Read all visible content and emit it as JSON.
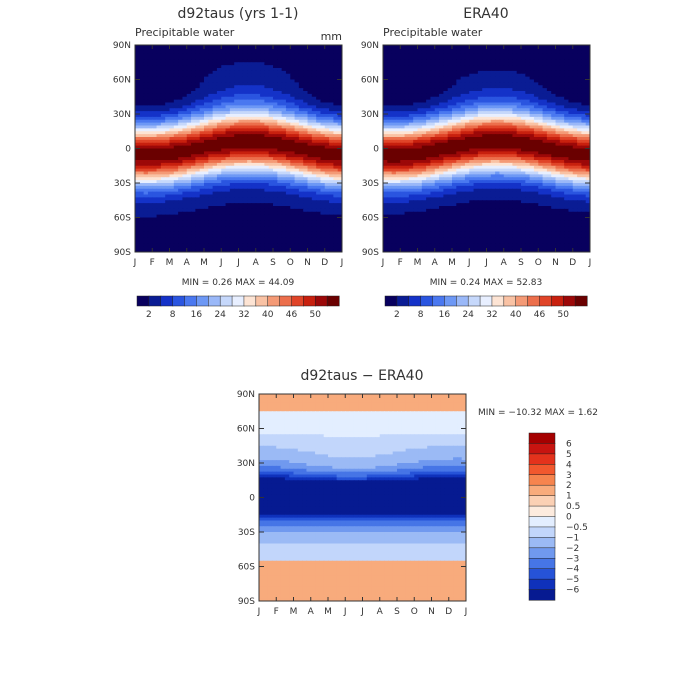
{
  "chart_data": [
    {
      "type": "heatmap",
      "title": "d92taus (yrs 1-1)",
      "subtitle": "Precipitable water",
      "units": "mm",
      "min_label": "MIN =    0.26 MAX =   44.09",
      "x_ticks": [
        "J",
        "F",
        "M",
        "A",
        "M",
        "J",
        "J",
        "A",
        "S",
        "O",
        "N",
        "D",
        "J"
      ],
      "y_ticks": [
        "90N",
        "60N",
        "30N",
        "0",
        "30S",
        "60S",
        "90S"
      ],
      "peak": 44,
      "colorbar": {
        "labels": [
          "2",
          "8",
          "16",
          "24",
          "32",
          "40",
          "46",
          "50"
        ],
        "colors": [
          "#08005e",
          "#0a1c94",
          "#1432c8",
          "#2a55e0",
          "#4a78f0",
          "#6d98f5",
          "#9ab8f8",
          "#c6d8fb",
          "#e8efff",
          "#fde4d4",
          "#f9c2a4",
          "#f49a76",
          "#ec6f4c",
          "#e04428",
          "#c8200e",
          "#9c0808",
          "#6a0000"
        ]
      }
    },
    {
      "type": "heatmap",
      "title": "ERA40",
      "subtitle": "Precipitable water",
      "min_label": "MIN =    0.24 MAX =   52.83",
      "x_ticks": [
        "J",
        "F",
        "M",
        "A",
        "M",
        "J",
        "J",
        "A",
        "S",
        "O",
        "N",
        "D",
        "J"
      ],
      "y_ticks": [
        "90N",
        "60N",
        "30N",
        "0",
        "30S",
        "60S",
        "90S"
      ],
      "peak": 53,
      "colorbar": {
        "labels": [
          "2",
          "8",
          "16",
          "24",
          "32",
          "40",
          "46",
          "50"
        ],
        "colors": [
          "#08005e",
          "#0a1c94",
          "#1432c8",
          "#2a55e0",
          "#4a78f0",
          "#6d98f5",
          "#9ab8f8",
          "#c6d8fb",
          "#e8efff",
          "#fde4d4",
          "#f9c2a4",
          "#f49a76",
          "#ec6f4c",
          "#e04428",
          "#c8200e",
          "#9c0808",
          "#6a0000"
        ]
      }
    },
    {
      "type": "heatmap",
      "title": "d92taus − ERA40",
      "min_label": "MIN = −10.32 MAX =    1.62",
      "x_ticks": [
        "J",
        "F",
        "M",
        "A",
        "M",
        "J",
        "J",
        "A",
        "S",
        "O",
        "N",
        "D",
        "J"
      ],
      "y_ticks": [
        "90N",
        "60N",
        "30N",
        "0",
        "30S",
        "60S",
        "90S"
      ],
      "colorbar": {
        "labels": [
          "6",
          "5",
          "4",
          "3",
          "2",
          "1",
          "0.5",
          "0",
          "−0.5",
          "−1",
          "−2",
          "−3",
          "−4",
          "−5",
          "−6"
        ],
        "colors": [
          "#a50000",
          "#c81410",
          "#e4321c",
          "#f2582e",
          "#f6844e",
          "#f8ab7c",
          "#fbd0b4",
          "#fdebde",
          "#e3eeff",
          "#c2d6fb",
          "#9bbaf5",
          "#7099ef",
          "#4675e6",
          "#2653d8",
          "#0f31bb",
          "#061a91"
        ]
      }
    }
  ]
}
